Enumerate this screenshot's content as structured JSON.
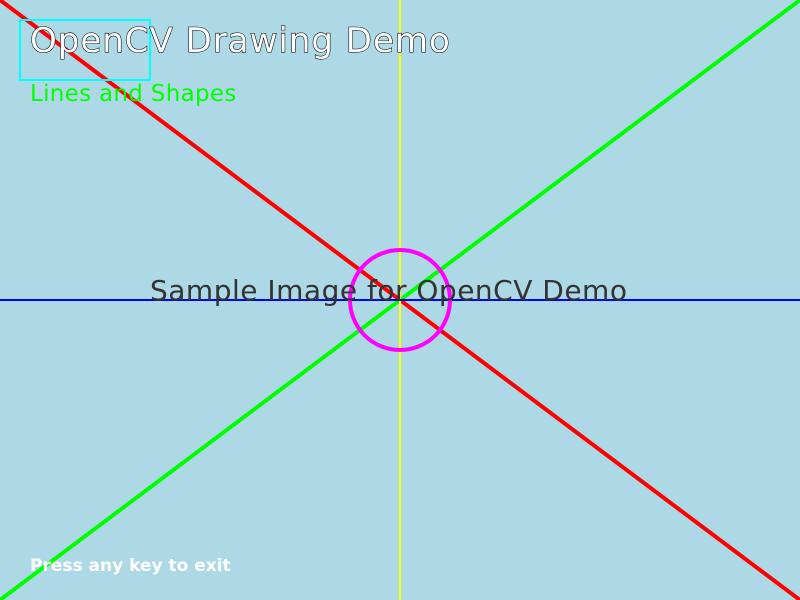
{
  "window": {
    "background_color": "#add8e6"
  },
  "texts": {
    "title": "OpenCV Drawing Demo",
    "subtitle": "Lines and Shapes",
    "center_caption": "Sample Image for OpenCV Demo",
    "footer_hint": "Press any key to exit"
  },
  "colors": {
    "title_fill": "#ffffff",
    "title_outline": "#000000",
    "subtitle": "#00ff00",
    "center_caption": "#333333",
    "footer_hint": "#ffffff",
    "diagonal_red": "#ff0000",
    "diagonal_green": "#00ff00",
    "vertical_line": "#ffff00",
    "horizontal_line": "#0000ff",
    "circle": "#ff00ff",
    "rectangle": "#00ffff"
  },
  "shapes": [
    {
      "kind": "line",
      "name": "red-diagonal-line",
      "color": "#ff0000"
    },
    {
      "kind": "line",
      "name": "green-diagonal-line",
      "color": "#00ff00"
    },
    {
      "kind": "line",
      "name": "yellow-vertical-line",
      "color": "#ffff00"
    },
    {
      "kind": "line",
      "name": "blue-horizontal-line",
      "color": "#0000ff"
    },
    {
      "kind": "circle",
      "name": "magenta-circle",
      "color": "#ff00ff"
    },
    {
      "kind": "rectangle",
      "name": "cyan-rectangle",
      "color": "#00ffff"
    }
  ]
}
